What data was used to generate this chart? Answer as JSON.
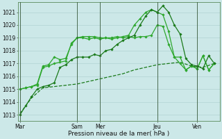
{
  "xlabel": "Pression niveau de la mer( hPa )",
  "bg_color": "#cce8e8",
  "grid_color": "#aacece",
  "ylim": [
    1012.5,
    1021.8
  ],
  "yticks": [
    1013,
    1014,
    1015,
    1016,
    1017,
    1018,
    1019,
    1020,
    1021
  ],
  "day_ticks_x": [
    0,
    5,
    7,
    12,
    15.5
  ],
  "day_labels": [
    "Mar",
    "Sam",
    "Mer",
    "Jeu",
    "Ven"
  ],
  "day_line_x": [
    0,
    5,
    7,
    12,
    15.5
  ],
  "xlim": [
    -0.2,
    17.5
  ],
  "series": [
    {
      "x": [
        0,
        1,
        2,
        3,
        4,
        5,
        6,
        7,
        8,
        9,
        10,
        11,
        12,
        13,
        14,
        15,
        16,
        17
      ],
      "y": [
        1013.1,
        1014.3,
        1015.1,
        1015.2,
        1015.3,
        1015.4,
        1015.6,
        1015.8,
        1016.0,
        1016.2,
        1016.5,
        1016.7,
        1016.9,
        1017.0,
        1017.1,
        1016.8,
        1016.7,
        1017.0
      ],
      "color": "#1a7a1a",
      "lw": 0.9,
      "marker": null,
      "ms": 0,
      "dashed": true,
      "zorder": 2
    },
    {
      "x": [
        0,
        0.5,
        1,
        1.5,
        2,
        2.5,
        3,
        3.5,
        4,
        4.5,
        5,
        5.5,
        6,
        6.5,
        7,
        7.5,
        8,
        8.5,
        9,
        9.5,
        10,
        10.5,
        11,
        11.5,
        12,
        12.5,
        13,
        13.5,
        14,
        14.5,
        15,
        15.5,
        16,
        16.5,
        17
      ],
      "y": [
        1015.0,
        1015.1,
        1015.2,
        1015.3,
        1016.7,
        1016.8,
        1017.0,
        1017.1,
        1017.2,
        1018.6,
        1019.0,
        1019.1,
        1019.1,
        1019.1,
        1019.0,
        1019.0,
        1019.0,
        1019.1,
        1019.0,
        1019.1,
        1019.0,
        1019.1,
        1019.1,
        1019.2,
        1020.0,
        1019.9,
        1018.5,
        1017.5,
        1017.5,
        1016.5,
        1016.8,
        1016.6,
        1017.6,
        1016.5,
        1017.0
      ],
      "color": "#2da82d",
      "lw": 0.9,
      "marker": "D",
      "ms": 1.8,
      "dashed": false,
      "zorder": 3
    },
    {
      "x": [
        0,
        0.5,
        1,
        1.5,
        2,
        2.5,
        3,
        3.5,
        4,
        4.5,
        5,
        5.5,
        6,
        6.5,
        7,
        7.5,
        8,
        8.5,
        9,
        9.5,
        10,
        10.5,
        11,
        11.5,
        12,
        12.5,
        13,
        13.5,
        14,
        14.5,
        15,
        15.5,
        16,
        16.5,
        17
      ],
      "y": [
        1015.0,
        1015.1,
        1015.2,
        1015.4,
        1016.8,
        1016.9,
        1017.5,
        1017.3,
        1017.4,
        1018.5,
        1019.0,
        1019.0,
        1018.9,
        1019.0,
        1018.9,
        1019.0,
        1018.9,
        1019.0,
        1019.1,
        1019.2,
        1020.0,
        1020.5,
        1021.0,
        1021.2,
        1021.0,
        1020.8,
        1019.5,
        1017.5,
        1017.0,
        1016.5,
        1016.8,
        1016.6,
        1017.6,
        1016.5,
        1017.0
      ],
      "color": "#2da82d",
      "lw": 0.9,
      "marker": "D",
      "ms": 1.8,
      "dashed": false,
      "zorder": 3
    },
    {
      "x": [
        0,
        0.5,
        1,
        1.5,
        2,
        2.5,
        3,
        3.5,
        4,
        4.5,
        5,
        5.5,
        6,
        6.5,
        7,
        7.5,
        8,
        8.5,
        9,
        9.5,
        10,
        10.5,
        11,
        11.5,
        12,
        12.5,
        13,
        13.5,
        14,
        14.5,
        15,
        15.5,
        16,
        16.5,
        17
      ],
      "y": [
        1013.0,
        1013.7,
        1014.4,
        1015.0,
        1015.2,
        1015.3,
        1015.5,
        1016.7,
        1016.9,
        1017.3,
        1017.5,
        1017.5,
        1017.5,
        1017.7,
        1017.6,
        1018.0,
        1018.1,
        1018.5,
        1018.8,
        1019.0,
        1019.2,
        1020.0,
        1020.7,
        1021.2,
        1021.0,
        1021.5,
        1021.0,
        1020.0,
        1019.3,
        1017.4,
        1016.9,
        1016.8,
        1016.6,
        1017.6,
        1017.0
      ],
      "color": "#1a7a1a",
      "lw": 0.9,
      "marker": "D",
      "ms": 1.8,
      "dashed": false,
      "zorder": 3
    }
  ]
}
